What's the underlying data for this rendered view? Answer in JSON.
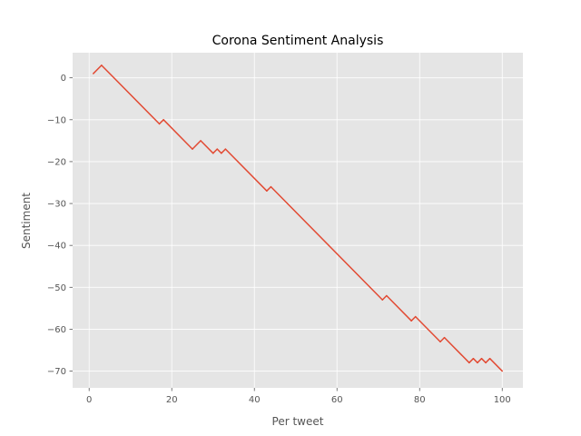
{
  "chart_data": {
    "type": "line",
    "title": "Corona Sentiment Analysis",
    "xlabel": "Per tweet",
    "ylabel": "Sentiment",
    "xlim": [
      -4,
      105
    ],
    "ylim": [
      -74,
      6
    ],
    "xticks": [
      0,
      20,
      40,
      60,
      80,
      100
    ],
    "yticks": [
      0,
      -10,
      -20,
      -30,
      -40,
      -50,
      -60,
      -70
    ],
    "xtick_labels": [
      "0",
      "20",
      "40",
      "60",
      "80",
      "100"
    ],
    "ytick_labels": [
      "0",
      "−10",
      "−20",
      "−30",
      "−40",
      "−50",
      "−60",
      "−70"
    ],
    "grid": true,
    "series": [
      {
        "color": "#e24a33",
        "x": [
          1,
          3,
          17,
          18,
          25,
          27,
          30,
          31,
          32,
          33,
          43,
          44,
          71,
          72,
          78,
          79,
          85,
          86,
          92,
          93,
          94,
          95,
          96,
          97,
          100
        ],
        "y": [
          1,
          3,
          -11,
          -10,
          -17,
          -15,
          -18,
          -17,
          -18,
          -17,
          -27,
          -26,
          -53,
          -52,
          -58,
          -57,
          -63,
          -62,
          -68,
          -67,
          -68,
          -67,
          -68,
          -67,
          -70
        ]
      }
    ],
    "colors": {
      "plot_background": "#e5e5e5",
      "grid": "#ffffff",
      "tick_text": "#555555",
      "title_text": "#000000"
    }
  }
}
